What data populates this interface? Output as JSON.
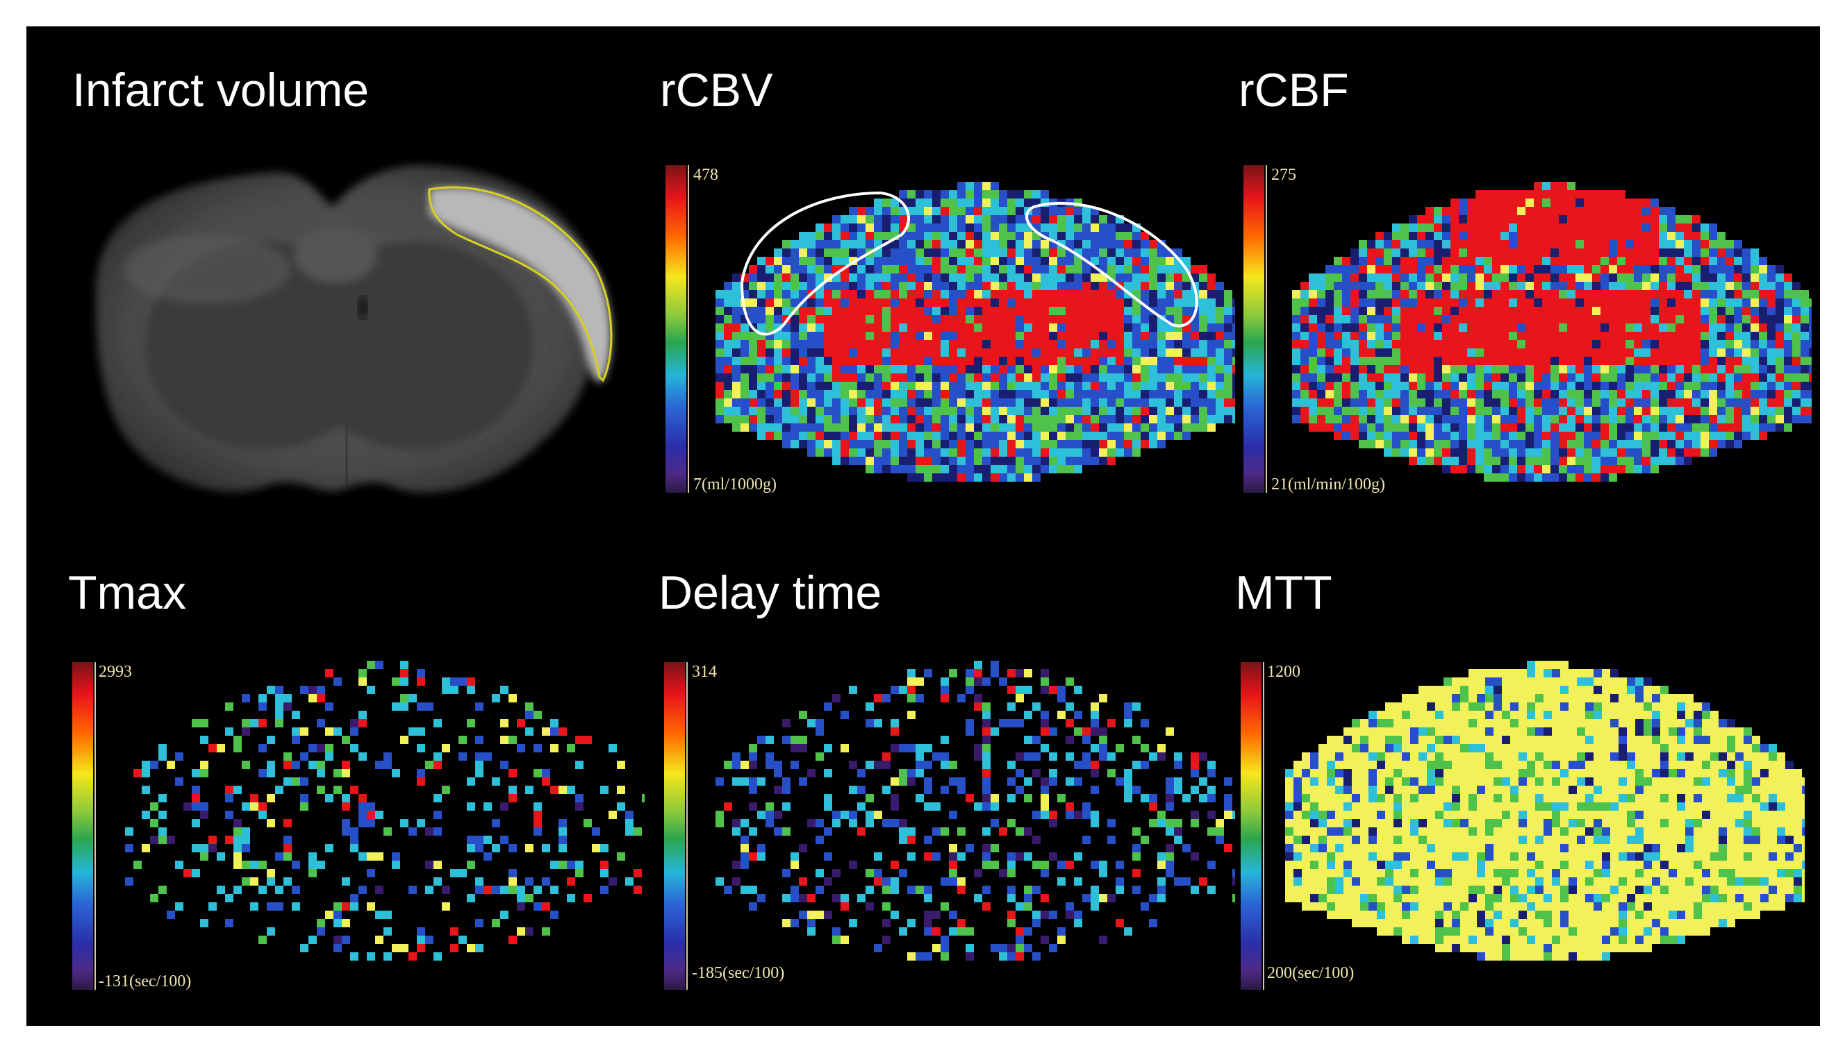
{
  "panels": [
    {
      "id": "infarct",
      "title": "Infarct volume"
    },
    {
      "id": "rcbv",
      "title": "rCBV",
      "scale_max": "478",
      "scale_min": "7(ml/1000g)"
    },
    {
      "id": "rcbf",
      "title": "rCBF",
      "scale_max": "275",
      "scale_min": "21(ml/min/100g)"
    },
    {
      "id": "tmax",
      "title": "Tmax",
      "scale_max": "2993",
      "scale_min": "-131(sec/100)"
    },
    {
      "id": "delay",
      "title": "Delay time",
      "scale_max": "314",
      "scale_min": "-185(sec/100)"
    },
    {
      "id": "mtt",
      "title": "MTT",
      "scale_max": "1200",
      "scale_min": "200(sec/100)"
    }
  ],
  "colors": {
    "background": "#000000",
    "outline_infarct": "#d9d21a",
    "outline_roi": "#ffffff",
    "red": "#e8151a",
    "yellow": "#f3f15a",
    "green": "#4ec24a",
    "cyan": "#2ec0d8",
    "blue": "#2750c8",
    "navy": "#1a1e70",
    "purple": "#3a1a6a"
  }
}
